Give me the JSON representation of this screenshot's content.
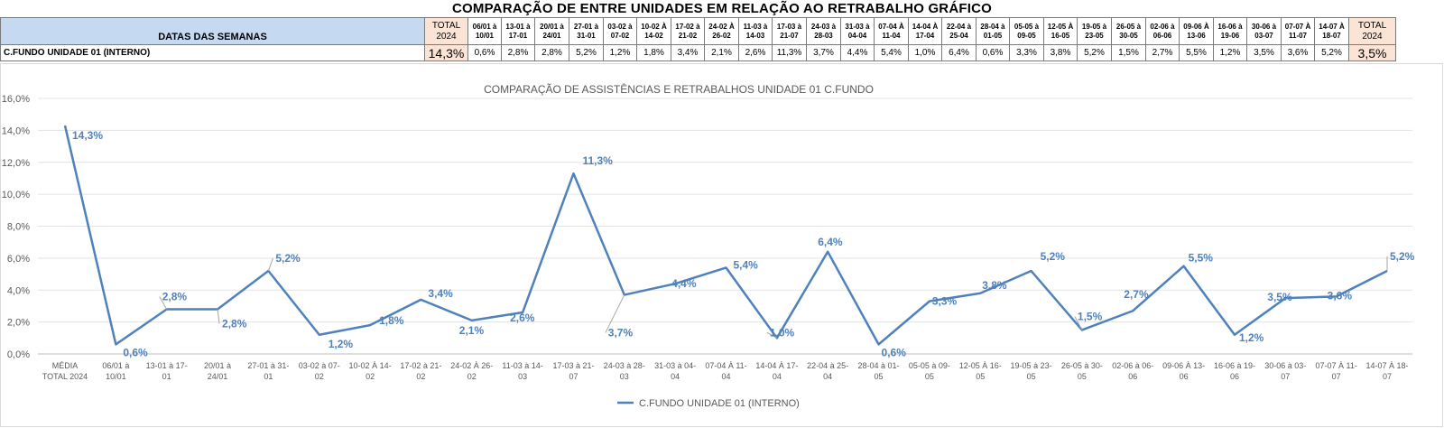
{
  "header": {
    "title": "COMPARAÇÃO DE ENTRE UNIDADES EM RELAÇÃO AO RETRABALHO GRÁFICO",
    "row_header": "DATAS DAS SEMANAS",
    "total_label": "TOTAL 2024",
    "week_labels": [
      "06/01 à 10/01",
      "13-01 à 17-01",
      "20/01 à 24/01",
      "27-01 à 31-01",
      "03-02 à 07-02",
      "10-02 À 14-02",
      "17-02 à 21-02",
      "24-02 À 26-02",
      "11-03 à 14-03",
      "17-03 à 21-07",
      "24-03 à 28-03",
      "31-03 à 04-04",
      "07-04 À 11-04",
      "14-04 À 17-04",
      "22-04 à 25-04",
      "28-04 à 01-05",
      "05-05 à 09-05",
      "12-05 À 16-05",
      "19-05 à 23-05",
      "26-05 à 30-05",
      "02-06 à 06-06",
      "09-06 À 13-06",
      "16-06 à 19-06",
      "30-06 à 03-07",
      "07-07 À 11-07",
      "14-07 À 18-07"
    ],
    "row_label": "C.FUNDO UNIDADE 01 (INTERNO)",
    "total_left": "14,3%",
    "week_values": [
      "0,6%",
      "2,8%",
      "2,8%",
      "5,2%",
      "1,2%",
      "1,8%",
      "3,4%",
      "2,1%",
      "2,6%",
      "11,3%",
      "3,7%",
      "4,4%",
      "5,4%",
      "1,0%",
      "6,4%",
      "0,6%",
      "3,3%",
      "3,8%",
      "5,2%",
      "1,5%",
      "2,7%",
      "5,5%",
      "1,2%",
      "3,5%",
      "3,6%",
      "5,2%"
    ],
    "total_right": "3,5%"
  },
  "chart_data": {
    "type": "line",
    "title": "COMPARAÇÃO DE ASSISTÊNCIAS E RETRABALHOS UNIDADE 01 C.FUNDO",
    "x": [
      "MÉDIA TOTAL 2024",
      "06/01 à 10/01",
      "13-01 à 17-01",
      "20/01 à 24/01",
      "27-01 à 31-01",
      "03-02 à 07-02",
      "10-02 À 14-02",
      "17-02 à 21-02",
      "24-02 À 26-02",
      "11-03 à 14-03",
      "17-03 à 21-07",
      "24-03 à 28-03",
      "31-03 à 04-04",
      "07-04 À 11-04",
      "14-04 À 17-04",
      "22-04 à 25-04",
      "28-04 à 01-05",
      "05-05 à 09-05",
      "12-05 À 16-05",
      "19-05 à 23-05",
      "26-05 à 30-05",
      "02-06 à 06-06",
      "09-06 À 13-06",
      "16-06 à 19-06",
      "30-06 à 03-07",
      "07-07 À 11-07",
      "14-07 À 18-07"
    ],
    "x_tick_lines": [
      [
        "MÉDIA",
        "TOTAL 2024"
      ],
      [
        "06/01 à",
        "10/01"
      ],
      [
        "13-01 à 17-",
        "01"
      ],
      [
        "20/01 à",
        "24/01"
      ],
      [
        "27-01 à 31-",
        "01"
      ],
      [
        "03-02 à 07-",
        "02"
      ],
      [
        "10-02 À 14-",
        "02"
      ],
      [
        "17-02 à 21-",
        "02"
      ],
      [
        "24-02 À 26-",
        "02"
      ],
      [
        "11-03 à 14-",
        "03"
      ],
      [
        "17-03 à 21-",
        "07"
      ],
      [
        "24-03 à 28-",
        "03"
      ],
      [
        "31-03 à 04-",
        "04"
      ],
      [
        "07-04 À 11-",
        "04"
      ],
      [
        "14-04 À 17-",
        "04"
      ],
      [
        "22-04 à 25-",
        "04"
      ],
      [
        "28-04 à 01-",
        "05"
      ],
      [
        "05-05 à 09-",
        "05"
      ],
      [
        "12-05 À 16-",
        "05"
      ],
      [
        "19-05 à 23-",
        "05"
      ],
      [
        "26-05 à 30-",
        "05"
      ],
      [
        "02-06 à 06-",
        "06"
      ],
      [
        "09-06 À 13-",
        "06"
      ],
      [
        "16-06 à 19-",
        "06"
      ],
      [
        "30-06 à 03-",
        "07"
      ],
      [
        "07-07 À 11-",
        "07"
      ],
      [
        "14-07 À 18-",
        "07"
      ]
    ],
    "series": [
      {
        "name": "C.FUNDO UNIDADE 01 (INTERNO)",
        "values": [
          14.3,
          0.6,
          2.8,
          2.8,
          5.2,
          1.2,
          1.8,
          3.4,
          2.1,
          2.6,
          11.3,
          3.7,
          4.4,
          5.4,
          1.0,
          6.4,
          0.6,
          3.3,
          3.8,
          5.2,
          1.5,
          2.7,
          5.5,
          1.2,
          3.5,
          3.6,
          5.2
        ],
        "labels": [
          "14,3%",
          "0,6%",
          "2,8%",
          "2,8%",
          "5,2%",
          "1,2%",
          "1,8%",
          "3,4%",
          "2,1%",
          "2,6%",
          "11,3%",
          "3,7%",
          "4,4%",
          "5,4%",
          "1,0%",
          "6,4%",
          "0,6%",
          "3,3%",
          "3,8%",
          "5,2%",
          "1,5%",
          "2,7%",
          "5,5%",
          "1,2%",
          "3,5%",
          "3,6%",
          "5,2%"
        ],
        "color": "#4f81bd"
      }
    ],
    "y_ticks": [
      "0,0%",
      "2,0%",
      "4,0%",
      "6,0%",
      "8,0%",
      "10,0%",
      "12,0%",
      "14,0%",
      "16,0%"
    ],
    "ylim": [
      0,
      16
    ],
    "grid": true,
    "legend_position": "bottom"
  }
}
